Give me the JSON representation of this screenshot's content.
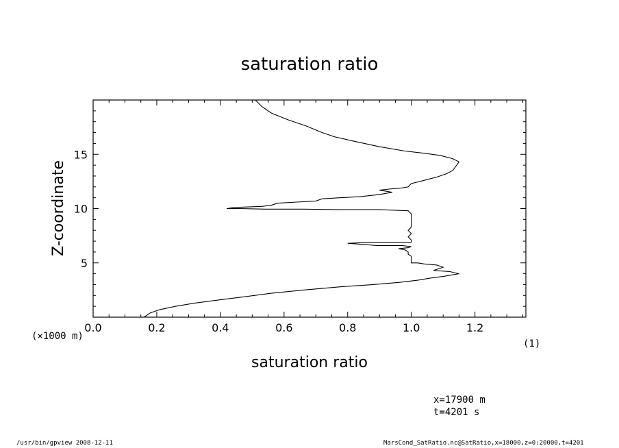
{
  "chart_data": {
    "type": "line",
    "title": "saturation ratio",
    "xlabel": "saturation ratio",
    "ylabel": "Z-coordinate",
    "x_unit": "(1)",
    "y_unit": "(×1000 m)",
    "xlim": [
      0,
      1.36
    ],
    "ylim": [
      0,
      20
    ],
    "x_ticks": [
      "0.0",
      "0.2",
      "0.4",
      "0.6",
      "0.8",
      "1.0",
      "1.2"
    ],
    "y_ticks": [
      "5",
      "10",
      "15"
    ],
    "grid": false,
    "series": [
      {
        "points": [
          [
            0.16,
            0.0
          ],
          [
            0.18,
            0.4
          ],
          [
            0.21,
            0.7
          ],
          [
            0.26,
            1.0
          ],
          [
            0.32,
            1.3
          ],
          [
            0.4,
            1.6
          ],
          [
            0.48,
            1.9
          ],
          [
            0.56,
            2.2
          ],
          [
            0.66,
            2.5
          ],
          [
            0.78,
            2.8
          ],
          [
            0.88,
            3.0
          ],
          [
            0.96,
            3.2
          ],
          [
            1.02,
            3.4
          ],
          [
            1.06,
            3.6
          ],
          [
            1.1,
            3.75
          ],
          [
            1.15,
            4.0
          ],
          [
            1.12,
            4.2
          ],
          [
            1.07,
            4.3
          ],
          [
            1.1,
            4.6
          ],
          [
            1.08,
            4.8
          ],
          [
            1.04,
            4.9
          ],
          [
            1.02,
            5.0
          ],
          [
            1.0,
            5.0
          ],
          [
            1.0,
            5.3
          ],
          [
            1.0,
            5.6
          ],
          [
            0.99,
            5.8
          ],
          [
            0.99,
            6.0
          ],
          [
            0.98,
            6.2
          ],
          [
            0.96,
            6.3
          ],
          [
            0.99,
            6.4
          ],
          [
            1.0,
            6.5
          ],
          [
            0.97,
            6.6
          ],
          [
            0.93,
            6.6
          ],
          [
            0.89,
            6.6
          ],
          [
            0.85,
            6.7
          ],
          [
            0.8,
            6.8
          ],
          [
            0.88,
            6.9
          ],
          [
            0.95,
            6.9
          ],
          [
            1.0,
            6.9
          ],
          [
            1.0,
            7.1
          ],
          [
            0.99,
            7.4
          ],
          [
            1.0,
            7.7
          ],
          [
            0.99,
            8.0
          ],
          [
            1.0,
            8.3
          ],
          [
            1.0,
            8.6
          ],
          [
            1.0,
            8.9
          ],
          [
            1.0,
            9.2
          ],
          [
            1.0,
            9.5
          ],
          [
            0.99,
            9.8
          ],
          [
            0.9,
            9.9
          ],
          [
            0.78,
            9.9
          ],
          [
            0.66,
            9.95
          ],
          [
            0.54,
            9.95
          ],
          [
            0.46,
            10.0
          ],
          [
            0.42,
            10.0
          ],
          [
            0.44,
            10.1
          ],
          [
            0.53,
            10.2
          ],
          [
            0.56,
            10.3
          ],
          [
            0.58,
            10.5
          ],
          [
            0.64,
            10.6
          ],
          [
            0.7,
            10.7
          ],
          [
            0.72,
            10.9
          ],
          [
            0.78,
            11.0
          ],
          [
            0.84,
            11.1
          ],
          [
            0.9,
            11.3
          ],
          [
            0.94,
            11.5
          ],
          [
            0.92,
            11.6
          ],
          [
            0.9,
            11.7
          ],
          [
            0.93,
            11.8
          ],
          [
            0.97,
            11.9
          ],
          [
            0.99,
            12.0
          ],
          [
            1.0,
            12.3
          ],
          [
            1.04,
            12.6
          ],
          [
            1.08,
            12.9
          ],
          [
            1.11,
            13.2
          ],
          [
            1.13,
            13.5
          ],
          [
            1.14,
            13.9
          ],
          [
            1.15,
            14.3
          ],
          [
            1.13,
            14.6
          ],
          [
            1.09,
            14.9
          ],
          [
            1.04,
            15.1
          ],
          [
            0.98,
            15.3
          ],
          [
            0.9,
            15.7
          ],
          [
            0.82,
            16.2
          ],
          [
            0.76,
            16.6
          ],
          [
            0.72,
            17.0
          ],
          [
            0.67,
            17.6
          ],
          [
            0.61,
            18.2
          ],
          [
            0.56,
            18.8
          ],
          [
            0.53,
            19.4
          ],
          [
            0.51,
            20.0
          ]
        ]
      }
    ]
  },
  "annotations": {
    "position_x": "x=17900 m",
    "time": "t=4201 s"
  },
  "footer": {
    "left": "/usr/bin/gpview   2008-12-11",
    "right": "MarsCond_SatRatio.nc@SatRatio,x=18000,z=0:20000,t=4201"
  }
}
